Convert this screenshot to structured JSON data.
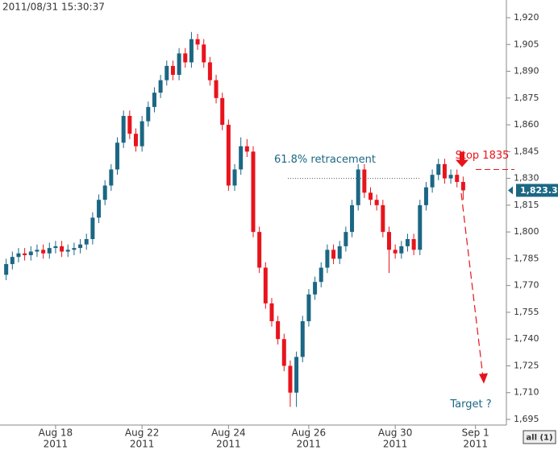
{
  "chart_data": {
    "type": "candlestick",
    "title": "2011/08/31 15:30:37",
    "series": {
      "up_color": "#1b6784",
      "down_color": "#e8141c",
      "open": [
        1776,
        1782,
        1786,
        1788,
        1787,
        1789,
        1790,
        1788,
        1791,
        1792,
        1789,
        1790,
        1791,
        1793,
        1796,
        1808,
        1818,
        1826,
        1835,
        1850,
        1865,
        1855,
        1848,
        1862,
        1870,
        1878,
        1885,
        1893,
        1888,
        1900,
        1895,
        1908,
        1905,
        1895,
        1885,
        1875,
        1860,
        1826,
        1835,
        1848,
        1845,
        1800,
        1780,
        1760,
        1750,
        1740,
        1725,
        1710,
        1730,
        1750,
        1765,
        1772,
        1780,
        1790,
        1785,
        1792,
        1800,
        1815,
        1835,
        1822,
        1818,
        1815,
        1800,
        1790,
        1788,
        1792,
        1796,
        1790,
        1815,
        1825,
        1832,
        1838,
        1830,
        1832,
        1828
      ],
      "high": [
        1785,
        1789,
        1791,
        1791,
        1792,
        1793,
        1793,
        1794,
        1795,
        1795,
        1793,
        1794,
        1796,
        1799,
        1811,
        1821,
        1829,
        1838,
        1853,
        1868,
        1868,
        1858,
        1865,
        1873,
        1881,
        1888,
        1896,
        1896,
        1903,
        1903,
        1912,
        1911,
        1908,
        1898,
        1888,
        1878,
        1863,
        1838,
        1853,
        1852,
        1848,
        1803,
        1783,
        1763,
        1753,
        1743,
        1728,
        1733,
        1753,
        1768,
        1775,
        1783,
        1793,
        1793,
        1795,
        1803,
        1818,
        1838,
        1838,
        1825,
        1821,
        1818,
        1803,
        1793,
        1795,
        1799,
        1799,
        1818,
        1828,
        1835,
        1841,
        1841,
        1835,
        1835,
        1831
      ],
      "low": [
        1773,
        1779,
        1783,
        1784,
        1784,
        1786,
        1785,
        1785,
        1788,
        1786,
        1786,
        1787,
        1788,
        1790,
        1793,
        1805,
        1815,
        1823,
        1832,
        1847,
        1852,
        1845,
        1845,
        1859,
        1867,
        1875,
        1882,
        1885,
        1885,
        1892,
        1892,
        1902,
        1892,
        1882,
        1872,
        1857,
        1823,
        1823,
        1832,
        1842,
        1797,
        1777,
        1757,
        1747,
        1737,
        1722,
        1702,
        1702,
        1727,
        1747,
        1762,
        1769,
        1777,
        1782,
        1782,
        1789,
        1797,
        1812,
        1819,
        1815,
        1812,
        1797,
        1777,
        1785,
        1785,
        1789,
        1787,
        1787,
        1812,
        1822,
        1829,
        1827,
        1827,
        1825,
        1818
      ],
      "close": [
        1782,
        1786,
        1788,
        1787,
        1789,
        1790,
        1788,
        1791,
        1792,
        1789,
        1790,
        1791,
        1793,
        1796,
        1808,
        1818,
        1826,
        1835,
        1850,
        1865,
        1855,
        1848,
        1862,
        1870,
        1878,
        1885,
        1893,
        1888,
        1900,
        1895,
        1908,
        1905,
        1895,
        1885,
        1875,
        1860,
        1826,
        1835,
        1848,
        1845,
        1800,
        1780,
        1760,
        1750,
        1740,
        1725,
        1710,
        1730,
        1750,
        1765,
        1772,
        1780,
        1790,
        1785,
        1792,
        1800,
        1815,
        1835,
        1822,
        1818,
        1815,
        1800,
        1790,
        1788,
        1792,
        1796,
        1790,
        1815,
        1825,
        1832,
        1838,
        1830,
        1832,
        1828,
        1823.3
      ]
    },
    "last_value_label": "1,823.3",
    "xlim": [
      -1,
      81
    ],
    "xticks": [
      {
        "value": 8,
        "label": "Aug 18",
        "sublabel": "2011"
      },
      {
        "value": 22,
        "label": "Aug 22",
        "sublabel": "2011"
      },
      {
        "value": 36,
        "label": "Aug 24",
        "sublabel": "2011"
      },
      {
        "value": 49,
        "label": "Aug 26",
        "sublabel": "2011"
      },
      {
        "value": 63,
        "label": "Aug 30",
        "sublabel": "2011"
      },
      {
        "value": 76,
        "label": "Sep 1",
        "sublabel": "2011"
      }
    ],
    "ylim": [
      1695,
      1920
    ],
    "yticks": [
      {
        "value": 1695,
        "label": "1,695"
      },
      {
        "value": 1710,
        "label": "1,710"
      },
      {
        "value": 1725,
        "label": "1,725"
      },
      {
        "value": 1740,
        "label": "1,740"
      },
      {
        "value": 1755,
        "label": "1,755"
      },
      {
        "value": 1770,
        "label": "1,770"
      },
      {
        "value": 1785,
        "label": "1,785"
      },
      {
        "value": 1800,
        "label": "1,800"
      },
      {
        "value": 1815,
        "label": "1,815"
      },
      {
        "value": 1830,
        "label": "1,830"
      },
      {
        "value": 1845,
        "label": "1,845"
      },
      {
        "value": 1860,
        "label": "1,860"
      },
      {
        "value": 1875,
        "label": "1,875"
      },
      {
        "value": 1890,
        "label": "1,890"
      },
      {
        "value": 1905,
        "label": "1,905"
      },
      {
        "value": 1920,
        "label": "1,920"
      }
    ],
    "annotations": {
      "retracement_text": "61.8% retracement",
      "retracement_level": 1830,
      "stop_text": "Stop 1835",
      "stop_level": 1835,
      "target_text": "Target  ?",
      "target_level": 1715
    },
    "range_button": "all (1)"
  }
}
